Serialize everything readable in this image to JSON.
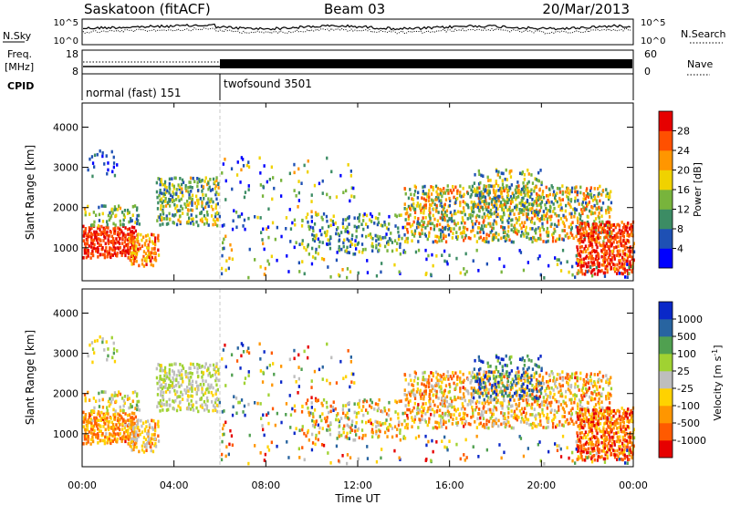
{
  "header": {
    "title": "Saskatoon (fitACF)",
    "beam": "Beam 03",
    "date": "20/Mar/2013"
  },
  "noise_panel": {
    "left_label": "N.Sky",
    "right_label": "N.Search",
    "y_ticks": [
      "10^5",
      "10^0"
    ]
  },
  "freq_panel": {
    "left_label_line1": "Freq.",
    "left_label_line2": "[MHz]",
    "left_ticks": [
      "18",
      "8"
    ],
    "right_label": "Nave",
    "right_ticks": [
      "60",
      "0"
    ]
  },
  "cpid_panel": {
    "label": "CPID",
    "segments": [
      {
        "name": "normal (fast) 151",
        "start_hour": 0,
        "end_hour": 6.0
      },
      {
        "name": "twofsound 3501",
        "start_hour": 6.0,
        "end_hour": 24
      }
    ]
  },
  "chart_data": [
    {
      "type": "heatmap",
      "title": "",
      "ylabel": "Slant Range [km]",
      "xlabel": "",
      "ylim": [
        180,
        4600
      ],
      "y_ticks": [
        "1000",
        "2000",
        "3000",
        "4000"
      ],
      "colorbar": {
        "label": "Power [dB]",
        "ticks": [
          "4",
          "8",
          "12",
          "16",
          "20",
          "24",
          "28"
        ],
        "colors": [
          "#0000ff",
          "#1e50b4",
          "#3c8c64",
          "#78b43c",
          "#f0d200",
          "#ff9600",
          "#ff5000",
          "#e60000"
        ]
      }
    },
    {
      "type": "heatmap",
      "title": "",
      "ylabel": "Slant Range [km]",
      "xlabel": "Time UT",
      "ylim": [
        180,
        4600
      ],
      "y_ticks": [
        "1000",
        "2000",
        "3000",
        "4000"
      ],
      "x_ticks": [
        "00:00",
        "04:00",
        "08:00",
        "12:00",
        "16:00",
        "20:00",
        "00:00"
      ],
      "colorbar": {
        "label_main": "Velocity [m s",
        "label_sup": "-1",
        "label_end": "]",
        "ticks": [
          "1000",
          "500",
          "100",
          "25",
          "-25",
          "-100",
          "-500",
          "-1000"
        ],
        "colors": [
          "#0a28c8",
          "#2864a0",
          "#50a050",
          "#a0d232",
          "#bebebe",
          "#ffd200",
          "#ff9600",
          "#ff5a00",
          "#e60000"
        ]
      }
    }
  ]
}
